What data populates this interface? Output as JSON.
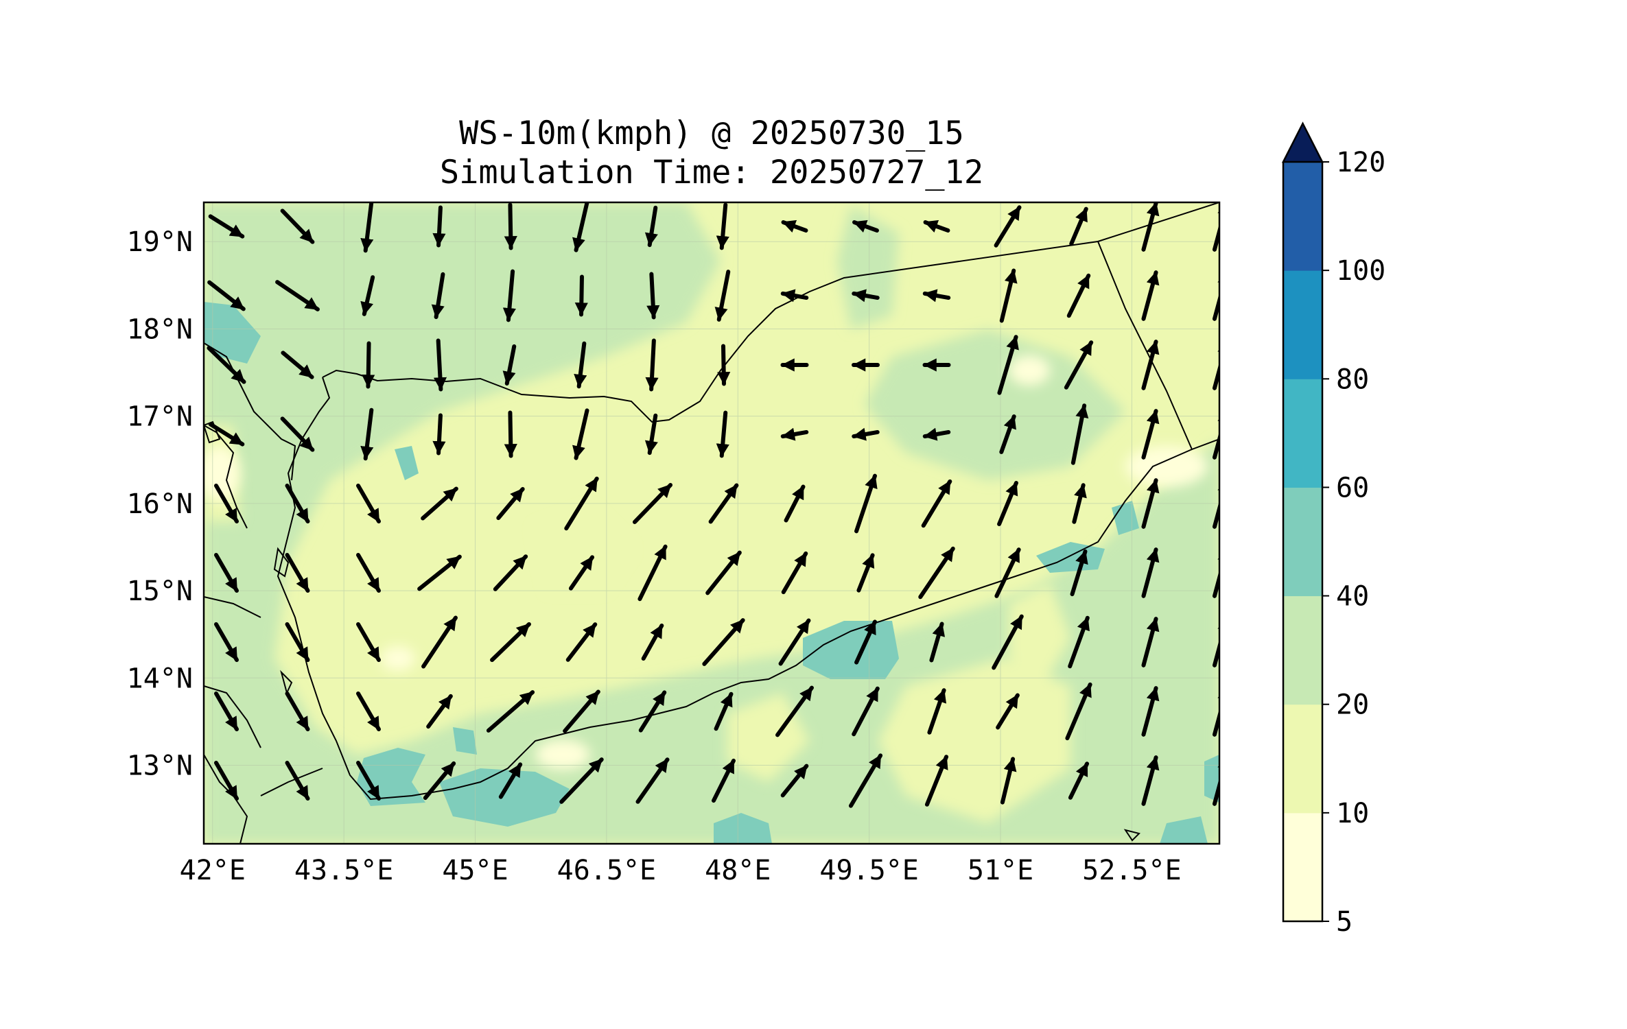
{
  "title": {
    "line1": "WS-10m(kmph) @ 20250730_15",
    "line2": "Simulation Time: 20250727_12"
  },
  "map": {
    "lon_range": [
      41.9,
      53.5
    ],
    "lat_range": [
      12.1,
      19.45
    ],
    "x_ticks": [
      {
        "lon": 42.0,
        "label": "42°E"
      },
      {
        "lon": 43.5,
        "label": "43.5°E"
      },
      {
        "lon": 45.0,
        "label": "45°E"
      },
      {
        "lon": 46.5,
        "label": "46.5°E"
      },
      {
        "lon": 48.0,
        "label": "48°E"
      },
      {
        "lon": 49.5,
        "label": "49.5°E"
      },
      {
        "lon": 51.0,
        "label": "51°E"
      },
      {
        "lon": 52.5,
        "label": "52.5°E"
      }
    ],
    "y_ticks": [
      {
        "lat": 19,
        "label": "19°N"
      },
      {
        "lat": 18,
        "label": "18°N"
      },
      {
        "lat": 17,
        "label": "17°N"
      },
      {
        "lat": 16,
        "label": "16°N"
      },
      {
        "lat": 15,
        "label": "15°N"
      },
      {
        "lat": 14,
        "label": "14°N"
      },
      {
        "lat": 13,
        "label": "13°N"
      }
    ]
  },
  "colorbar": {
    "levels": [
      "5",
      "10",
      "20",
      "40",
      "60",
      "80",
      "100",
      "120"
    ],
    "colors": [
      "#ffffd9",
      "#edf8b1",
      "#c7e9b4",
      "#7fcdbb",
      "#41b6c4",
      "#1d91c0",
      "#225ea8",
      "#0c2c84"
    ],
    "extend_color": "#081d58"
  },
  "chart_data": {
    "type": "heatmap",
    "title": "WS-10m(kmph) @ 20250730_15 / Simulation Time: 20250727_12",
    "xlabel": "",
    "ylabel": "",
    "value_range": [
      5,
      120
    ],
    "dominant_bands": [
      "10-20",
      "20-40"
    ],
    "high_wind_patches_40_60": [
      {
        "lon": 42.3,
        "lat": 18.0
      },
      {
        "lon": 43.9,
        "lat": 12.8
      },
      {
        "lon": 45.5,
        "lat": 12.7
      },
      {
        "lon": 49.1,
        "lat": 14.3
      },
      {
        "lon": 51.7,
        "lat": 15.3
      },
      {
        "lon": 52.4,
        "lat": 15.7
      },
      {
        "lon": 48.0,
        "lat": 12.2
      }
    ],
    "vectors_note": "10 m wind direction arrows on a regular grid"
  }
}
